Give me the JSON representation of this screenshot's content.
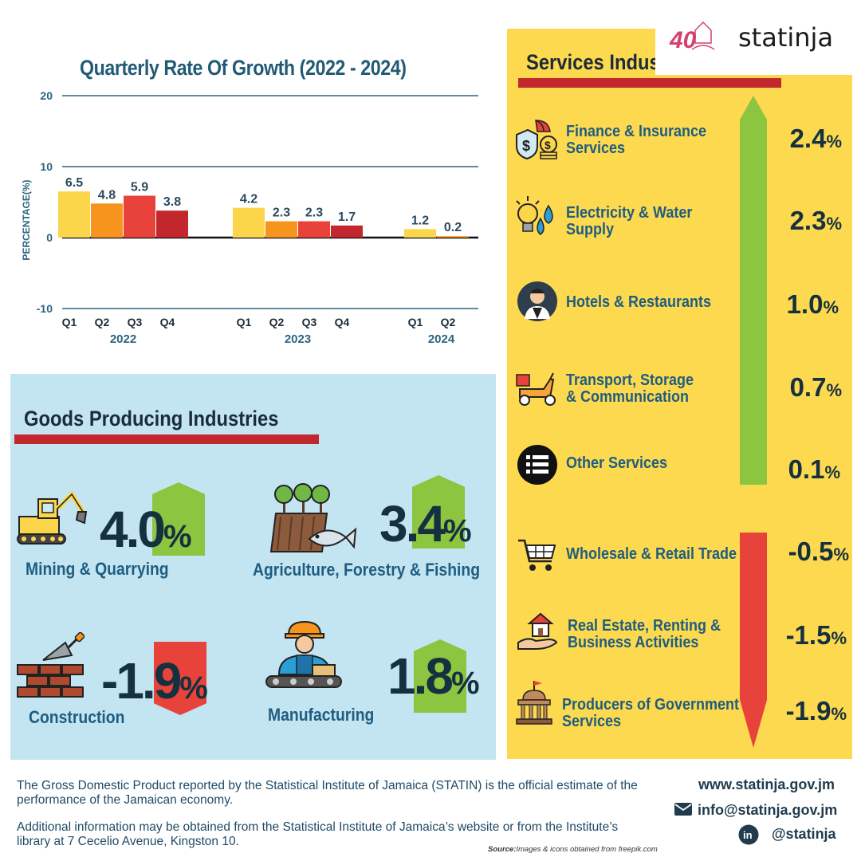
{
  "logo": {
    "brand": "statinja",
    "badge_text": "40"
  },
  "chart_data": {
    "type": "bar",
    "title": "Quarterly Rate Of Growth (2022 - 2024)",
    "ylabel": "PERCENTAGE(%)",
    "ylim": [
      -10,
      20
    ],
    "yticks": [
      "20",
      "10",
      "0",
      "-10"
    ],
    "gridlines": true,
    "groups": [
      {
        "year": "2022",
        "categories": [
          "Q1",
          "Q2",
          "Q3",
          "Q4"
        ],
        "values": [
          6.5,
          4.8,
          5.9,
          3.8
        ],
        "labels": [
          "6.5",
          "4.8",
          "5.9",
          "3.8"
        ]
      },
      {
        "year": "2023",
        "categories": [
          "Q1",
          "Q2",
          "Q3",
          "Q4"
        ],
        "values": [
          4.2,
          2.3,
          2.3,
          1.7
        ],
        "labels": [
          "4.2",
          "2.3",
          "2.3",
          "1.7"
        ]
      },
      {
        "year": "2024",
        "categories": [
          "Q1",
          "Q2"
        ],
        "values": [
          1.2,
          0.2
        ],
        "labels": [
          "1.2",
          "0.2"
        ]
      }
    ],
    "bar_colors": [
      "#fbd54a",
      "#f7941d",
      "#e8433a",
      "#c1272d"
    ]
  },
  "goods": {
    "title": "Goods Producing Industries",
    "items": [
      {
        "label": "Mining & Quarrying",
        "value": "4.0",
        "unit": "%",
        "direction": "up",
        "icon": "excavator-icon"
      },
      {
        "label": "Agriculture, Forestry  & Fishing",
        "value": "3.4",
        "unit": "%",
        "direction": "up",
        "icon": "farm-fish-icon"
      },
      {
        "label": "Construction",
        "value": "-1.9",
        "unit": "%",
        "direction": "down",
        "icon": "bricks-trowel-icon"
      },
      {
        "label": "Manufacturing",
        "value": "1.8",
        "unit": "%",
        "direction": "up",
        "icon": "factory-worker-icon"
      }
    ]
  },
  "services": {
    "title": "Services Industries",
    "items": [
      {
        "label_lines": [
          "Finance & Insurance",
          "Services"
        ],
        "value": "2.4",
        "unit": "%",
        "icon": "money-umbrella-icon"
      },
      {
        "label_lines": [
          "Electricity & Water",
          "Supply"
        ],
        "value": "2.3",
        "unit": "%",
        "icon": "bulb-water-icon"
      },
      {
        "label_lines": [
          "Hotels & Restaurants"
        ],
        "value": "1.0",
        "unit": "%",
        "icon": "waiter-icon"
      },
      {
        "label_lines": [
          "Transport, Storage",
          "& Communication"
        ],
        "value": "0.7",
        "unit": "%",
        "icon": "scooter-icon"
      },
      {
        "label_lines": [
          "Other Services"
        ],
        "value": "0.1",
        "unit": "%",
        "icon": "list-icon"
      },
      {
        "label_lines": [
          "Wholesale & Retail Trade"
        ],
        "value": "-0.5",
        "unit": "%",
        "icon": "cart-icon"
      },
      {
        "label_lines": [
          "Real Estate, Renting &",
          "Business Activities"
        ],
        "value": "-1.5",
        "unit": "%",
        "icon": "house-hand-icon"
      },
      {
        "label_lines": [
          "Producers of Government",
          "Services"
        ],
        "value": "-1.9",
        "unit": "%",
        "icon": "government-building-icon"
      }
    ]
  },
  "footer": {
    "para1": "The Gross Domestic Product reported by the Statistical Institute of Jamaica (STATIN) is the official estimate of the performance of the Jamaican economy.",
    "para2": "Additional information may be obtained from the Statistical Institute of Jamaica’s website or from the Institute’s library at 7 Cecelio Avenue, Kingston 10.",
    "website": "www.statinja.gov.jm",
    "email": "info@statinja.gov.jm",
    "social": "@statinja",
    "source_label": "Source:",
    "source_text": "Images & icons obtained from freepik.com"
  }
}
